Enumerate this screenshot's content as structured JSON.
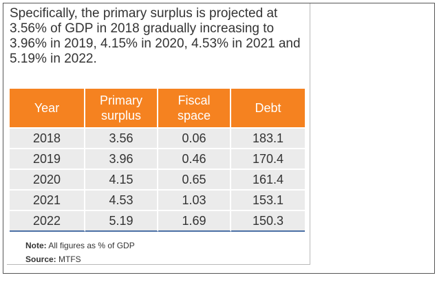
{
  "paragraph": "Specifically, the primary surplus is projected at 3.56% of GDP in 2018 gradually increasing to 3.96% in 2019, 4.15% in 2020, 4.53% in 2021 and 5.19% in 2022.",
  "table": {
    "headers": [
      "Year",
      "Primary surplus",
      "Fiscal space",
      "Debt"
    ],
    "rows": [
      [
        "2018",
        "3.56",
        "0.06",
        "183.1"
      ],
      [
        "2019",
        "3.96",
        "0.46",
        "170.4"
      ],
      [
        "2020",
        "4.15",
        "0.65",
        "161.4"
      ],
      [
        "2021",
        "4.53",
        "1.03",
        "153.1"
      ],
      [
        "2022",
        "5.19",
        "1.69",
        "150.3"
      ]
    ]
  },
  "note": {
    "label": "Note:",
    "text": " All figures as % of GDP"
  },
  "source": {
    "label": "Source:",
    "text": " MTFS"
  },
  "colors": {
    "header_bg": "#f58220",
    "row_bg": "#ebebeb",
    "bottom_rule": "#4a6fa5"
  }
}
